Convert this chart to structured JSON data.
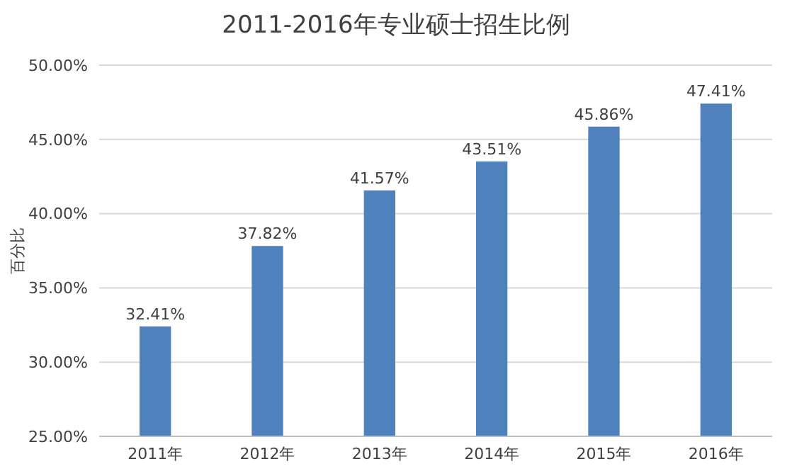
{
  "chart_data": {
    "type": "bar",
    "title": "2011-2016年专业硕士招生比例",
    "ylabel": "百分比",
    "categories": [
      "2011年",
      "2012年",
      "2013年",
      "2014年",
      "2015年",
      "2016年"
    ],
    "values": [
      32.41,
      37.82,
      41.57,
      43.51,
      45.86,
      47.41
    ],
    "value_labels": [
      "32.41%",
      "37.82%",
      "41.57%",
      "43.51%",
      "45.86%",
      "47.41%"
    ],
    "color": "#4f81bd",
    "ylim": [
      25,
      50
    ],
    "yticks": [
      {
        "value": 25,
        "label": "25.00%"
      },
      {
        "value": 30,
        "label": "30.00%"
      },
      {
        "value": 35,
        "label": "35.00%"
      },
      {
        "value": 40,
        "label": "40.00%"
      },
      {
        "value": 45,
        "label": "45.00%"
      },
      {
        "value": 50,
        "label": "50.00%"
      }
    ],
    "grid": "y",
    "legend": false
  }
}
